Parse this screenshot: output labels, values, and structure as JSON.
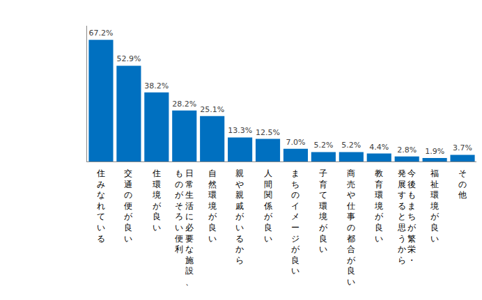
{
  "chart_data": {
    "type": "bar",
    "categories": [
      "住みなれている",
      "交通の便が良い",
      "住環境が良い",
      "日常生活に必要な施設、\nものがそろい便利",
      "自然環境が良い",
      "親や親戚がいるから",
      "人間関係が良い",
      "まちのイメージが良い",
      "子育て環境が良い",
      "商売や仕事の都合が良い",
      "教育環境が良い",
      "今後もまちが繁栄・\n発展すると思うから",
      "福祉環境が良い",
      "その他"
    ],
    "values": [
      67.2,
      52.9,
      38.2,
      28.2,
      25.1,
      13.3,
      12.5,
      7.0,
      5.2,
      5.2,
      4.4,
      2.8,
      1.9,
      3.7
    ],
    "value_labels": [
      "67.2%",
      "52.9%",
      "38.2%",
      "28.2%",
      "25.1%",
      "13.3%",
      "12.5%",
      "7.0%",
      "5.2%",
      "5.2%",
      "4.4%",
      "2.8%",
      "1.9%",
      "3.7%"
    ],
    "color": "#0070c0",
    "ylim": [
      0,
      75
    ],
    "grid": false,
    "data_labels": true,
    "tick_labels": "x"
  }
}
